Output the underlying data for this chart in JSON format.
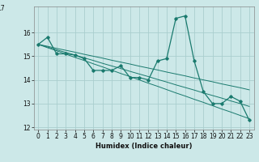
{
  "xlabel": "Humidex (Indice chaleur)",
  "background_color": "#cce8e8",
  "grid_color": "#aacece",
  "line_color": "#1a7a6e",
  "x_humidex": [
    0,
    1,
    2,
    3,
    4,
    5,
    6,
    7,
    8,
    9,
    10,
    11,
    12,
    13,
    14,
    15,
    16,
    17,
    18,
    19,
    20,
    21,
    22,
    23
  ],
  "y_main": [
    15.5,
    15.8,
    15.1,
    15.1,
    15.05,
    14.9,
    14.4,
    14.4,
    14.4,
    14.6,
    14.1,
    14.1,
    14.0,
    14.8,
    14.9,
    16.6,
    16.7,
    14.8,
    13.5,
    13.0,
    13.0,
    13.3,
    13.1,
    12.3
  ],
  "y_trend1": [
    15.5,
    15.42,
    15.33,
    15.25,
    15.17,
    15.08,
    15.0,
    14.92,
    14.83,
    14.75,
    14.67,
    14.58,
    14.5,
    14.42,
    14.33,
    14.25,
    14.17,
    14.08,
    14.0,
    13.92,
    13.83,
    13.75,
    13.67,
    13.58
  ],
  "y_trend2": [
    15.5,
    15.36,
    15.23,
    15.09,
    14.95,
    14.82,
    14.68,
    14.55,
    14.41,
    14.27,
    14.14,
    14.0,
    13.86,
    13.73,
    13.59,
    13.45,
    13.32,
    13.18,
    13.05,
    12.91,
    12.77,
    12.64,
    12.5,
    12.36
  ],
  "y_trend3": [
    15.5,
    15.39,
    15.27,
    15.16,
    15.05,
    14.93,
    14.82,
    14.7,
    14.59,
    14.48,
    14.36,
    14.25,
    14.14,
    14.02,
    13.91,
    13.79,
    13.68,
    13.57,
    13.45,
    13.34,
    13.23,
    13.11,
    13.0,
    12.88
  ],
  "ylim": [
    11.9,
    17.1
  ],
  "yticks": [
    12,
    13,
    14,
    15,
    16
  ],
  "xlim": [
    -0.5,
    23.5
  ],
  "xticks": [
    0,
    1,
    2,
    3,
    4,
    5,
    6,
    7,
    8,
    9,
    10,
    11,
    12,
    13,
    14,
    15,
    16,
    17,
    18,
    19,
    20,
    21,
    22,
    23
  ],
  "tick_fontsize": 5.5,
  "xlabel_fontsize": 6.0
}
